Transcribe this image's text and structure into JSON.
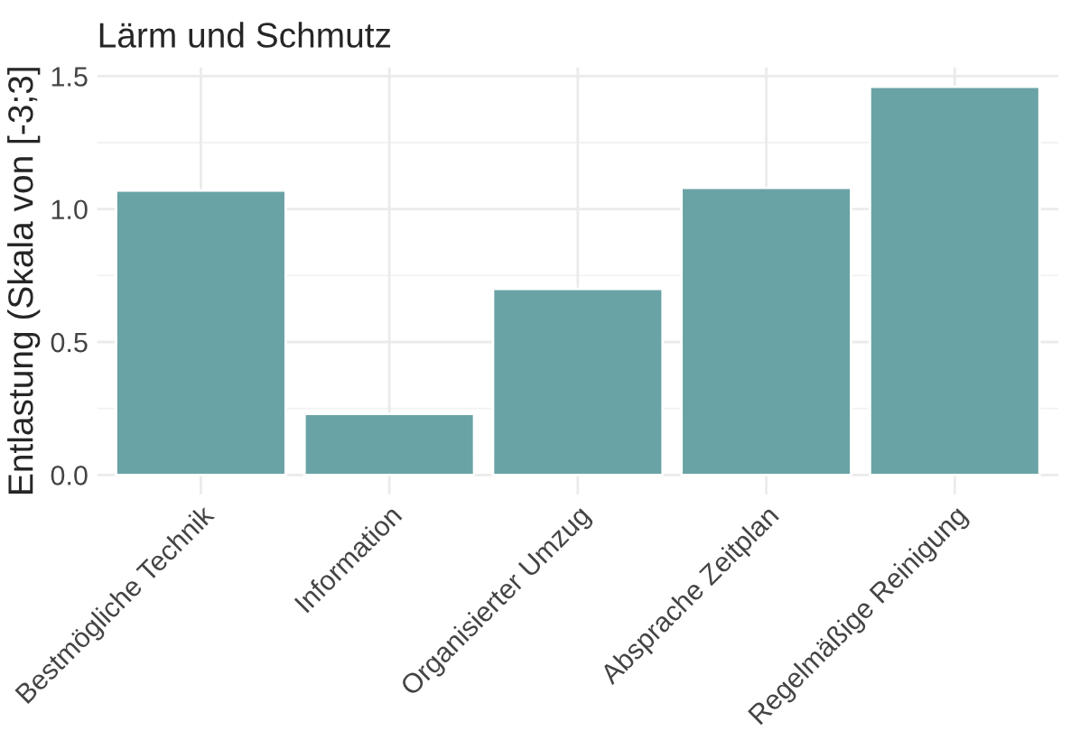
{
  "chart_data": {
    "type": "bar",
    "title": "Lärm und Schmutz",
    "ylabel": "Entlastung (Skala von [-3;3]",
    "categories": [
      "Bestmögliche Technik",
      "Information",
      "Organisierter Umzug",
      "Absprache Zeitplan",
      "Regelmäßige Reinigung"
    ],
    "values": [
      1.07,
      0.23,
      0.7,
      1.08,
      1.46
    ],
    "color": "#6aa3a6",
    "ylim": [
      -0.073,
      1.533
    ],
    "yticks": [
      {
        "value": 0,
        "label": "0.0"
      },
      {
        "value": 0.5,
        "label": "0.5"
      },
      {
        "value": 1,
        "label": "1.0"
      },
      {
        "value": 1.5,
        "label": "1.5"
      }
    ],
    "grid": true
  }
}
